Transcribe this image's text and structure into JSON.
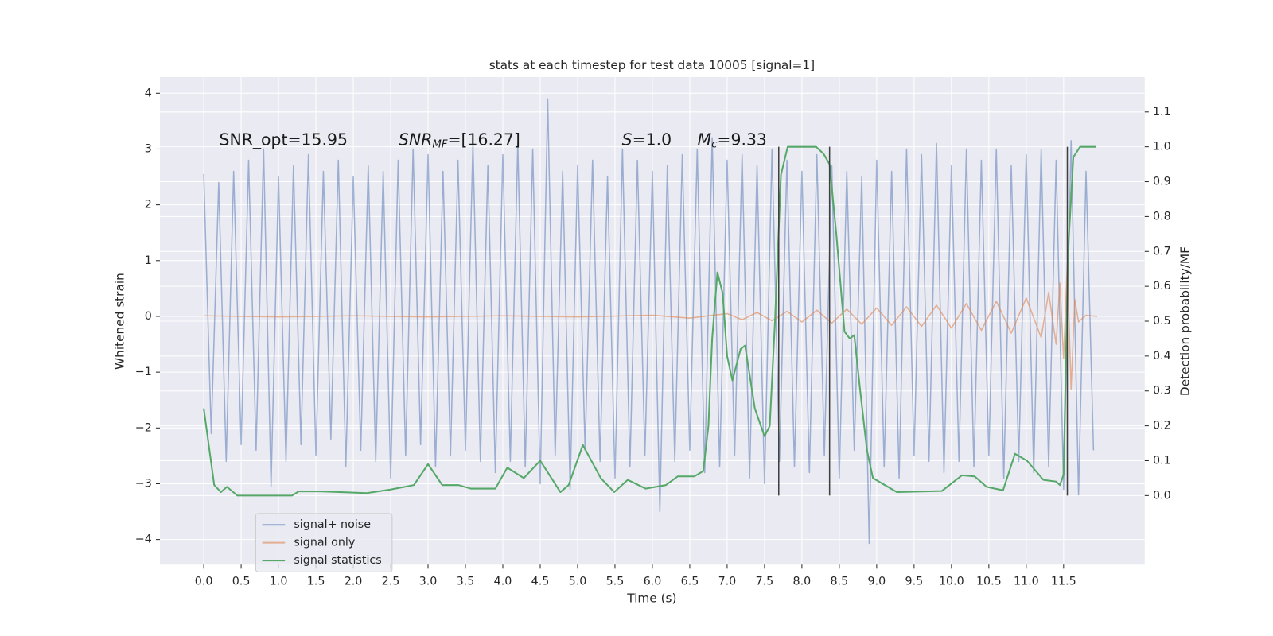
{
  "chart_data": {
    "type": "line",
    "title": "stats at each timestep for test data 10005 [signal=1]",
    "x_label": "Time (s)",
    "y_label": "Whitened strain",
    "y2_label": "Detection probability/MF",
    "xlim": [
      -0.586,
      12.585
    ],
    "ylim": [
      -4.45,
      4.29
    ],
    "y2lim": [
      -0.198,
      1.2
    ],
    "grid": true,
    "legend": "lower left",
    "xticks": [
      {
        "value": 0,
        "label": "0.0"
      },
      0.5,
      {
        "value": 1,
        "label": "1.0"
      },
      1.5,
      {
        "value": 2,
        "label": "2.0"
      },
      2.5,
      {
        "value": 3,
        "label": "3.0"
      },
      3.5,
      {
        "value": 4,
        "label": "4.0"
      },
      4.5,
      {
        "value": 5,
        "label": "5.0"
      },
      5.5,
      {
        "value": 6,
        "label": "6.0"
      },
      6.5,
      {
        "value": 7,
        "label": "7.0"
      },
      7.5,
      {
        "value": 8,
        "label": "8.0"
      },
      8.5,
      {
        "value": 9,
        "label": "9.0"
      },
      9.5,
      {
        "value": 10,
        "label": "10.0"
      },
      10.5,
      {
        "value": 11,
        "label": "11.0"
      },
      11.5
    ],
    "yticks": [
      {
        "value": -4,
        "label": "−4"
      },
      {
        "value": -3,
        "label": "−3"
      },
      {
        "value": -2,
        "label": "−2"
      },
      {
        "value": -1,
        "label": "−1"
      },
      0,
      1,
      2,
      3,
      4
    ],
    "y2ticks": [
      {
        "value": 0,
        "label": "0.0"
      },
      0.1,
      0.2,
      0.3,
      0.4,
      0.5,
      0.6,
      0.7,
      0.8,
      0.9,
      {
        "value": 1,
        "label": "1.0"
      },
      1.1
    ],
    "series": [
      {
        "name": "signal+ noise",
        "color": "#4c72b0",
        "opacity": 0.5,
        "x": [
          0.0,
          0.1,
          0.2,
          0.3,
          0.4,
          0.5,
          0.6,
          0.7,
          0.8,
          0.9,
          1.0,
          1.1,
          1.2,
          1.3,
          1.4,
          1.5,
          1.6,
          1.7,
          1.8,
          1.9,
          2.0,
          2.1,
          2.2,
          2.3,
          2.4,
          2.5,
          2.6,
          2.7,
          2.8,
          2.9,
          3.0,
          3.1,
          3.2,
          3.3,
          3.4,
          3.5,
          3.6,
          3.7,
          3.8,
          3.9,
          4.0,
          4.1,
          4.2,
          4.3,
          4.4,
          4.5,
          4.6,
          4.7,
          4.8,
          4.9,
          5.0,
          5.1,
          5.2,
          5.3,
          5.4,
          5.5,
          5.6,
          5.7,
          5.8,
          5.9,
          6.0,
          6.1,
          6.2,
          6.3,
          6.4,
          6.5,
          6.6,
          6.7,
          6.8,
          6.9,
          7.0,
          7.1,
          7.2,
          7.3,
          7.4,
          7.5,
          7.6,
          7.7,
          7.8,
          7.9,
          8.0,
          8.1,
          8.2,
          8.3,
          8.4,
          8.5,
          8.6,
          8.7,
          8.8,
          8.9,
          9.0,
          9.1,
          9.2,
          9.3,
          9.4,
          9.5,
          9.6,
          9.7,
          9.8,
          9.9,
          10.0,
          10.1,
          10.2,
          10.3,
          10.4,
          10.5,
          10.6,
          10.7,
          10.8,
          10.9,
          11.0,
          11.1,
          11.2,
          11.3,
          11.4,
          11.5,
          11.6,
          11.7,
          11.8,
          11.9
        ],
        "values": [
          2.55,
          -2.1,
          2.4,
          -2.6,
          2.6,
          -2.3,
          2.8,
          -2.4,
          3.0,
          -3.05,
          2.5,
          -2.6,
          2.7,
          -2.3,
          2.9,
          -2.5,
          2.6,
          -2.2,
          2.8,
          -2.7,
          2.5,
          -2.4,
          2.7,
          -2.6,
          2.6,
          -2.9,
          2.8,
          -2.5,
          3.0,
          -2.3,
          2.9,
          -2.7,
          2.6,
          -2.5,
          2.8,
          -2.4,
          3.1,
          -2.6,
          2.7,
          -2.8,
          2.9,
          -2.6,
          3.1,
          -2.7,
          3.0,
          -3.0,
          3.9,
          -2.5,
          2.6,
          -3.1,
          2.7,
          -2.4,
          2.8,
          -2.6,
          2.5,
          -2.9,
          3.0,
          -2.7,
          2.8,
          -2.5,
          2.6,
          -3.5,
          2.7,
          -2.6,
          2.9,
          -2.4,
          3.0,
          -2.8,
          3.2,
          -2.7,
          2.8,
          -2.5,
          2.9,
          -2.9,
          2.7,
          -3.0,
          3.0,
          -2.6,
          2.8,
          -2.7,
          2.6,
          -2.8,
          2.9,
          -2.5,
          2.7,
          -2.9,
          2.6,
          -2.4,
          2.5,
          -4.07,
          2.8,
          -2.7,
          2.6,
          -2.9,
          3.0,
          -2.5,
          2.9,
          -2.6,
          3.1,
          -2.8,
          2.7,
          -2.6,
          3.0,
          -2.7,
          2.8,
          -2.5,
          3.0,
          -2.9,
          2.7,
          -2.6,
          2.9,
          -2.8,
          3.0,
          -2.7,
          2.8,
          -3.1,
          3.15,
          -3.2,
          2.6,
          -2.4
        ]
      },
      {
        "name": "signal only",
        "color": "#dd8452",
        "opacity": 0.6,
        "x": [
          0.0,
          1.0,
          2.0,
          3.0,
          4.0,
          5.0,
          6.0,
          6.5,
          7.0,
          7.2,
          7.4,
          7.6,
          7.8,
          8.0,
          8.2,
          8.4,
          8.6,
          8.8,
          9.0,
          9.2,
          9.4,
          9.6,
          9.8,
          10.0,
          10.2,
          10.4,
          10.6,
          10.8,
          11.0,
          11.2,
          11.3,
          11.4,
          11.45,
          11.5,
          11.55,
          11.6,
          11.65,
          11.7,
          11.8,
          11.95
        ],
        "values": [
          0.01,
          -0.01,
          0.01,
          -0.01,
          0.01,
          -0.01,
          0.02,
          -0.03,
          0.05,
          -0.06,
          0.07,
          -0.08,
          0.09,
          -0.1,
          0.11,
          -0.12,
          0.13,
          -0.14,
          0.15,
          -0.16,
          0.17,
          -0.18,
          0.2,
          -0.21,
          0.23,
          -0.25,
          0.27,
          -0.3,
          0.33,
          -0.38,
          0.43,
          -0.5,
          0.6,
          -0.75,
          0.95,
          -1.3,
          0.3,
          -0.1,
          0.02,
          0.0
        ]
      },
      {
        "name": "signal statistics",
        "color": "#55a868",
        "opacity": 1,
        "axis": "y2",
        "x": [
          0.0,
          0.14,
          0.23,
          0.31,
          0.45,
          0.64,
          1.18,
          1.27,
          1.56,
          2.18,
          2.49,
          2.81,
          3.0,
          3.19,
          3.41,
          3.57,
          3.9,
          4.06,
          4.28,
          4.5,
          4.77,
          4.88,
          5.07,
          5.31,
          5.49,
          5.67,
          5.91,
          6.18,
          6.34,
          6.56,
          6.68,
          6.75,
          6.8,
          6.87,
          6.94,
          7.0,
          7.07,
          7.18,
          7.24,
          7.37,
          7.5,
          7.57,
          7.64,
          7.72,
          7.81,
          8.19,
          8.29,
          8.37,
          8.46,
          8.57,
          8.64,
          8.7,
          8.78,
          8.87,
          8.95,
          9.11,
          9.27,
          9.87,
          10.14,
          10.31,
          10.47,
          10.69,
          10.85,
          11.01,
          11.23,
          11.4,
          11.45,
          11.5,
          11.56,
          11.63,
          11.72,
          11.93
        ],
        "values": [
          0.25,
          0.03,
          0.01,
          0.025,
          0.0,
          0.0,
          0.0,
          0.012,
          0.012,
          0.007,
          0.017,
          0.03,
          0.09,
          0.03,
          0.03,
          0.02,
          0.02,
          0.08,
          0.05,
          0.1,
          0.01,
          0.03,
          0.145,
          0.05,
          0.01,
          0.045,
          0.02,
          0.03,
          0.055,
          0.055,
          0.07,
          0.2,
          0.45,
          0.64,
          0.58,
          0.4,
          0.33,
          0.42,
          0.43,
          0.25,
          0.17,
          0.2,
          0.5,
          0.92,
          1.0,
          1.0,
          0.98,
          0.95,
          0.75,
          0.47,
          0.45,
          0.46,
          0.3,
          0.13,
          0.05,
          0.03,
          0.01,
          0.013,
          0.058,
          0.055,
          0.025,
          0.015,
          0.12,
          0.1,
          0.045,
          0.04,
          0.03,
          0.06,
          0.7,
          0.97,
          1.0,
          1.0
        ]
      }
    ],
    "vlines": {
      "x": [
        7.69,
        8.37,
        11.55
      ],
      "y2": [
        0,
        1
      ],
      "color": "#404040"
    },
    "annotations": [
      {
        "text": "SNR_opt=15.95"
      },
      {
        "symbol": "SNR",
        "sub": "MF",
        "rest": "=[16.27]"
      },
      {
        "symbol": "S",
        "rest": "=1.0"
      },
      {
        "symbol": "M",
        "sub": "c",
        "rest": "=9.33"
      }
    ]
  }
}
